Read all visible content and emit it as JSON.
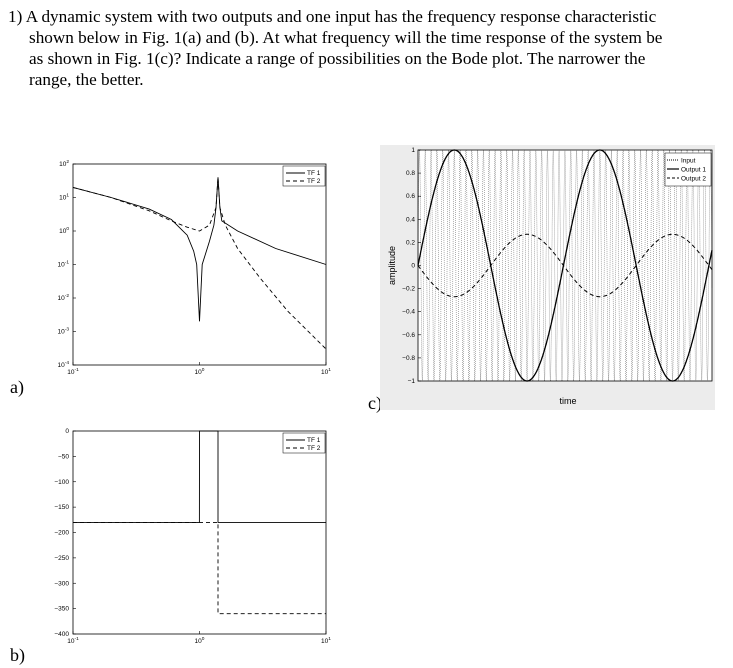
{
  "question": {
    "number": "1)",
    "lines": [
      "A dynamic system with two outputs and one input has the frequency response characteristic",
      "shown below in Fig. 1(a) and (b). At what frequency will the time response of the system be",
      "as shown in Fig. 1(c)? Indicate a range of possibilities on the Bode plot. The narrower the",
      "range, the better."
    ]
  },
  "panel_labels": {
    "a": "a)",
    "b": "b)",
    "c": "c)"
  },
  "chart_data": [
    {
      "id": "magnitude",
      "type": "line",
      "x_scale": "log",
      "y_scale": "log",
      "xlim": [
        0.1,
        10
      ],
      "ylim": [
        0.0001,
        100
      ],
      "x_tick_labels": [
        {
          "base": "10",
          "exp": "-1"
        },
        {
          "base": "10",
          "exp": "0"
        },
        {
          "base": "10",
          "exp": "1"
        }
      ],
      "y_tick_labels": [
        {
          "base": "10",
          "exp": "2"
        },
        {
          "base": "10",
          "exp": "1"
        },
        {
          "base": "10",
          "exp": "0"
        },
        {
          "base": "10",
          "exp": "-1"
        },
        {
          "base": "10",
          "exp": "-2"
        },
        {
          "base": "10",
          "exp": "-3"
        },
        {
          "base": "10",
          "exp": "-4"
        }
      ],
      "legend": {
        "position": "top-right",
        "entries": [
          "TF 1",
          "TF 2"
        ]
      },
      "series": [
        {
          "name": "TF 1",
          "style": "solid",
          "x": [
            0.1,
            0.2,
            0.4,
            0.6,
            0.8,
            0.9,
            0.95,
            1.0,
            1.05,
            1.2,
            1.3,
            1.35,
            1.4,
            1.45,
            1.5,
            2,
            4,
            10
          ],
          "y": [
            20,
            10,
            4.5,
            2.2,
            0.75,
            0.25,
            0.1,
            0.002,
            0.1,
            0.5,
            1.5,
            5,
            40,
            5,
            2,
            1,
            0.3,
            0.1
          ]
        },
        {
          "name": "TF 2",
          "style": "dashed",
          "x": [
            0.1,
            0.2,
            0.4,
            0.6,
            0.8,
            1.0,
            1.2,
            1.35,
            1.4,
            1.45,
            1.6,
            2,
            3,
            5,
            10
          ],
          "y": [
            20,
            10,
            4,
            2,
            1.3,
            1.0,
            1.5,
            5,
            40,
            5,
            1.5,
            0.3,
            0.04,
            0.004,
            0.0003
          ]
        }
      ]
    },
    {
      "id": "phase",
      "type": "line",
      "x_scale": "log",
      "xlim": [
        0.1,
        10
      ],
      "ylim": [
        -400,
        0
      ],
      "x_tick_labels": [
        {
          "base": "10",
          "exp": "-1"
        },
        {
          "base": "10",
          "exp": "0"
        },
        {
          "base": "10",
          "exp": "1"
        }
      ],
      "y_ticks": [
        0,
        -50,
        -100,
        -150,
        -200,
        -250,
        -300,
        -350,
        -400
      ],
      "legend": {
        "position": "top-right",
        "entries": [
          "TF 1",
          "TF 2"
        ]
      },
      "series": [
        {
          "name": "TF 1",
          "style": "solid",
          "x": [
            0.1,
            0.999,
            1.0,
            1.4,
            1.401,
            10
          ],
          "y": [
            -180,
            -180,
            0,
            0,
            -180,
            -180
          ]
        },
        {
          "name": "TF 2",
          "style": "dashed",
          "x": [
            0.1,
            1.0,
            1.4,
            1.401,
            10
          ],
          "y": [
            -180,
            -180,
            -180,
            -360,
            -360
          ]
        }
      ]
    },
    {
      "id": "time",
      "type": "line",
      "xlim": [
        0,
        12.7
      ],
      "ylim": [
        -1,
        1
      ],
      "y_ticks": [
        "1",
        "0.8",
        "0.6",
        "0.4",
        "0.2",
        "0",
        "−0.2",
        "−0.4",
        "−0.6",
        "−0.8",
        "−1"
      ],
      "xlabel": "time",
      "ylabel": "amplitude",
      "legend": {
        "position": "top-right",
        "entries": [
          "Input",
          "Output 1",
          "Output 2"
        ]
      },
      "series": [
        {
          "name": "Input",
          "style": "dotted",
          "amplitude": 1.0,
          "frequency_rad": 25,
          "phase_rad": 0
        },
        {
          "name": "Output 1",
          "style": "solid",
          "amplitude": 1.0,
          "frequency_rad": 1,
          "phase_rad": 0
        },
        {
          "name": "Output 2",
          "style": "dashed",
          "amplitude": 0.27,
          "frequency_rad": 1,
          "phase_rad": 3.14159
        }
      ]
    }
  ]
}
